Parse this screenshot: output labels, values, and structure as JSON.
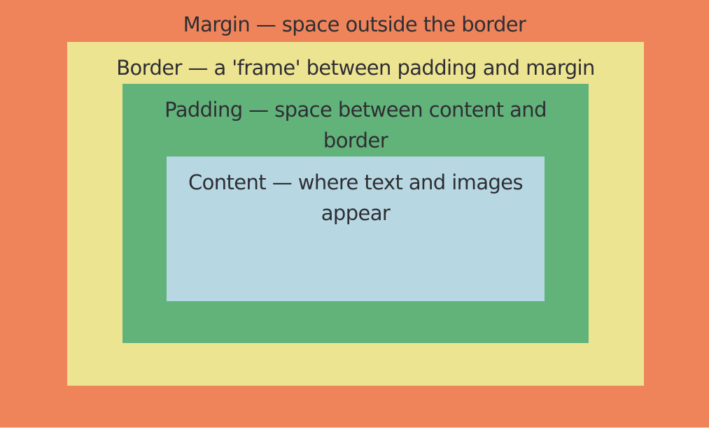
{
  "diagram": {
    "margin": {
      "label": "Margin — space outside the border",
      "color": "#ef845b"
    },
    "border": {
      "label": "Border — a 'frame' between padding and margin",
      "color": "#ede492"
    },
    "padding": {
      "label": "Padding — space between content and border",
      "color": "#62b37a"
    },
    "content": {
      "label": "Content — where text and images appear",
      "color": "#b7d8e3"
    }
  }
}
